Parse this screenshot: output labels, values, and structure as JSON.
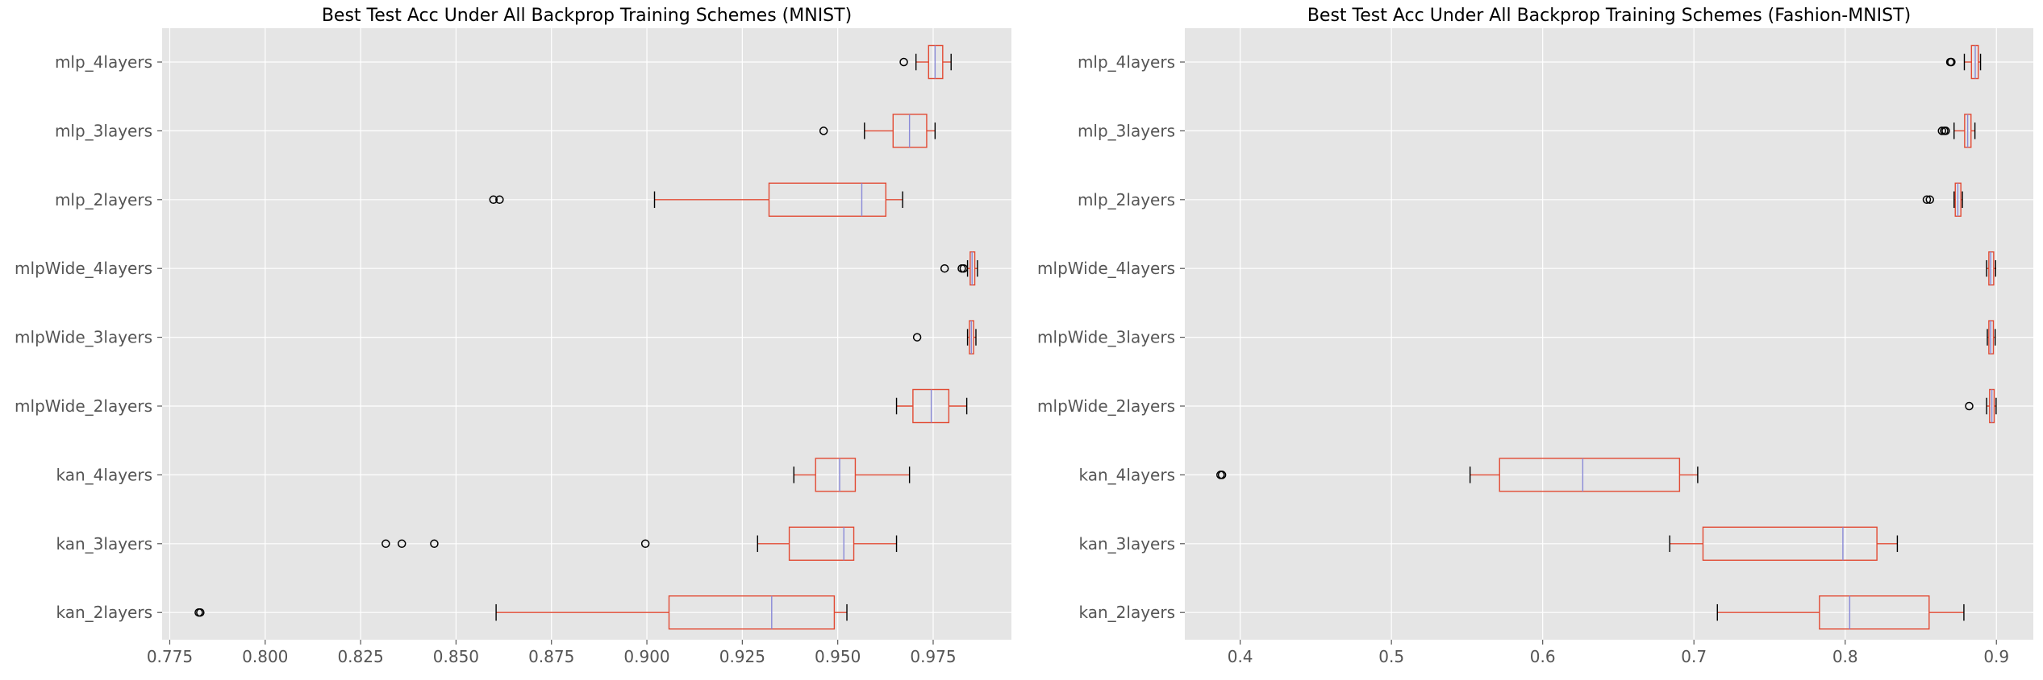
{
  "chart_data": [
    {
      "type": "boxplot",
      "orientation": "horizontal",
      "title": "Best Test Acc Under All Backprop Training Schemes (MNIST)",
      "xlabel": "",
      "ylabel": "",
      "xlim": [
        0.773,
        0.9955
      ],
      "xticks": [
        0.775,
        0.8,
        0.825,
        0.85,
        0.875,
        0.9,
        0.925,
        0.95,
        0.975
      ],
      "xtick_labels": [
        "0.775",
        "0.800",
        "0.825",
        "0.850",
        "0.875",
        "0.900",
        "0.925",
        "0.950",
        "0.975"
      ],
      "grid": true,
      "categories": [
        "mlp_4layers",
        "mlp_3layers",
        "mlp_2layers",
        "mlpWide_4layers",
        "mlpWide_3layers",
        "mlpWide_2layers",
        "kan_4layers",
        "kan_3layers",
        "kan_2layers"
      ],
      "boxes": [
        {
          "label": "mlp_4layers",
          "whislo": 0.9705,
          "q1": 0.9738,
          "med": 0.9755,
          "q3": 0.9775,
          "whishi": 0.9797,
          "fliers": [
            0.9673
          ]
        },
        {
          "label": "mlp_3layers",
          "whislo": 0.957,
          "q1": 0.9645,
          "med": 0.9688,
          "q3": 0.9733,
          "whishi": 0.9755,
          "fliers": [
            0.9463
          ]
        },
        {
          "label": "mlp_2layers",
          "whislo": 0.902,
          "q1": 0.932,
          "med": 0.9563,
          "q3": 0.9626,
          "whishi": 0.967,
          "fliers": [
            0.8598,
            0.8614
          ]
        },
        {
          "label": "mlpWide_4layers",
          "whislo": 0.984,
          "q1": 0.9847,
          "med": 0.9852,
          "q3": 0.9859,
          "whishi": 0.9866,
          "fliers": [
            0.978,
            0.9825,
            0.983
          ]
        },
        {
          "label": "mlpWide_3layers",
          "whislo": 0.984,
          "q1": 0.9845,
          "med": 0.985,
          "q3": 0.9856,
          "whishi": 0.9862,
          "fliers": [
            0.9708
          ]
        },
        {
          "label": "mlpWide_2layers",
          "whislo": 0.9654,
          "q1": 0.9697,
          "med": 0.9745,
          "q3": 0.9791,
          "whishi": 0.9838,
          "fliers": []
        },
        {
          "label": "kan_4layers",
          "whislo": 0.9385,
          "q1": 0.9442,
          "med": 0.9505,
          "q3": 0.9546,
          "whishi": 0.9688,
          "fliers": []
        },
        {
          "label": "kan_3layers",
          "whislo": 0.929,
          "q1": 0.9373,
          "med": 0.9516,
          "q3": 0.9542,
          "whishi": 0.9654,
          "fliers": [
            0.8316,
            0.8358,
            0.8443,
            0.8996
          ]
        },
        {
          "label": "kan_2layers",
          "whislo": 0.8605,
          "q1": 0.9058,
          "med": 0.9327,
          "q3": 0.9491,
          "whishi": 0.9524,
          "fliers": [
            0.7826,
            0.783
          ]
        }
      ]
    },
    {
      "type": "boxplot",
      "orientation": "horizontal",
      "title": "Best Test Acc Under All Backprop Training Schemes (Fashion-MNIST)",
      "xlabel": "",
      "ylabel": "",
      "xlim": [
        0.3634,
        0.9244
      ],
      "xticks": [
        0.4,
        0.5,
        0.6,
        0.7,
        0.8,
        0.9
      ],
      "xtick_labels": [
        "0.4",
        "0.5",
        "0.6",
        "0.7",
        "0.8",
        "0.9"
      ],
      "grid": true,
      "categories": [
        "mlp_4layers",
        "mlp_3layers",
        "mlp_2layers",
        "mlpWide_4layers",
        "mlpWide_3layers",
        "mlpWide_2layers",
        "kan_4layers",
        "kan_3layers",
        "kan_2layers"
      ],
      "boxes": [
        {
          "label": "mlp_4layers",
          "whislo": 0.8788,
          "q1": 0.8835,
          "med": 0.886,
          "q3": 0.888,
          "whishi": 0.8895,
          "fliers": [
            0.8695,
            0.8702
          ]
        },
        {
          "label": "mlp_3layers",
          "whislo": 0.872,
          "q1": 0.879,
          "med": 0.881,
          "q3": 0.8832,
          "whishi": 0.8858,
          "fliers": [
            0.864,
            0.8655,
            0.8665
          ]
        },
        {
          "label": "mlp_2layers",
          "whislo": 0.872,
          "q1": 0.8728,
          "med": 0.8745,
          "q3": 0.8765,
          "whishi": 0.8775,
          "fliers": [
            0.854,
            0.856
          ]
        },
        {
          "label": "mlpWide_4layers",
          "whislo": 0.8935,
          "q1": 0.895,
          "med": 0.8962,
          "q3": 0.8982,
          "whishi": 0.8995,
          "fliers": []
        },
        {
          "label": "mlpWide_3layers",
          "whislo": 0.894,
          "q1": 0.895,
          "med": 0.8962,
          "q3": 0.898,
          "whishi": 0.8992,
          "fliers": []
        },
        {
          "label": "mlpWide_2layers",
          "whislo": 0.8935,
          "q1": 0.8955,
          "med": 0.897,
          "q3": 0.8985,
          "whishi": 0.8998,
          "fliers": [
            0.882
          ]
        },
        {
          "label": "kan_4layers",
          "whislo": 0.552,
          "q1": 0.5715,
          "med": 0.6265,
          "q3": 0.6905,
          "whishi": 0.7025,
          "fliers": [
            0.387,
            0.388
          ]
        },
        {
          "label": "kan_3layers",
          "whislo": 0.684,
          "q1": 0.706,
          "med": 0.7985,
          "q3": 0.821,
          "whishi": 0.8345,
          "fliers": []
        },
        {
          "label": "kan_2layers",
          "whislo": 0.7155,
          "q1": 0.783,
          "med": 0.803,
          "q3": 0.8555,
          "whishi": 0.8785,
          "fliers": []
        }
      ]
    }
  ],
  "colors": {
    "axes_background": "#e5e5e5",
    "grid": "#ffffff",
    "box": "#e24a33",
    "median": "#8a8ad8",
    "whisker": "#e24a33",
    "cap": "#000000",
    "flier": "#000000",
    "text": "#555555",
    "title": "#000000"
  }
}
